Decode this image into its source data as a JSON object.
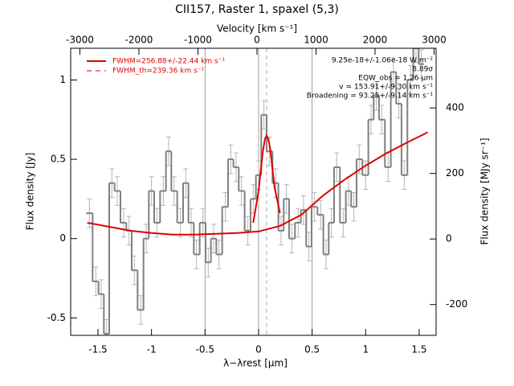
{
  "chart_data": {
    "type": "line",
    "title": "CII157, Raster 1, spaxel (5,3)",
    "xlabel": "λ−λrest [μm]",
    "ylabel": "Flux density [Jy]",
    "x2label": "Velocity [km s⁻¹]",
    "y2label": "Flux density [MJy sr⁻¹]",
    "xlim": [
      -1.755,
      1.658
    ],
    "xticks": [
      -1.5,
      -1.0,
      -0.5,
      0.0,
      0.5,
      1.0,
      1.5
    ],
    "ylim": [
      -0.61,
      1.2
    ],
    "yticks": [
      -0.5,
      0.0,
      0.5,
      1.0
    ],
    "x2lim": [
      -3156,
      3034
    ],
    "x2ticks": [
      -3000,
      -2000,
      -1000,
      0,
      1000,
      2000,
      3000
    ],
    "y2lim": [
      -294,
      582
    ],
    "y2ticks": [
      -200,
      0,
      200,
      400
    ],
    "vlines": [
      -0.5,
      0,
      0.5
    ],
    "line_center": 0.075,
    "legend": "upper left",
    "legend_entries": [
      "FWHM=256.88+/-22.44 km s⁻¹",
      "FWHM_th=239.36 km s⁻¹"
    ],
    "annotations": [
      "9.25e-18+/-1.06e-18 W m⁻²",
      "8.89σ",
      "EQW_obs = 1.26 μm",
      "v = 153.91+/-9.30 km s⁻¹",
      "Broadening = 93.25+/-9.14 km s⁻¹"
    ],
    "series": [
      {
        "name": "spectrum",
        "color": "#808080",
        "error_color": "#b4b4b4",
        "error": 0.09,
        "x": [
          -1.58,
          -1.52,
          -1.47,
          -1.42,
          -1.37,
          -1.32,
          -1.26,
          -1.21,
          -1.16,
          -1.1,
          -1.05,
          -1.0,
          -0.95,
          -0.89,
          -0.84,
          -0.79,
          -0.73,
          -0.68,
          -0.63,
          -0.58,
          -0.52,
          -0.47,
          -0.42,
          -0.37,
          -0.31,
          -0.26,
          -0.21,
          -0.16,
          -0.1,
          -0.05,
          0.0,
          0.05,
          0.1,
          0.16,
          0.21,
          0.26,
          0.31,
          0.37,
          0.42,
          0.47,
          0.52,
          0.58,
          0.63,
          0.68,
          0.73,
          0.79,
          0.84,
          0.89,
          0.94,
          1.0,
          1.05,
          1.1,
          1.15,
          1.21,
          1.26,
          1.31,
          1.36,
          1.42,
          1.47,
          1.52
        ],
        "values": [
          0.16,
          -0.27,
          -0.35,
          -0.6,
          0.35,
          0.3,
          0.1,
          0.05,
          -0.2,
          -0.45,
          0.0,
          0.3,
          0.1,
          0.3,
          0.55,
          0.3,
          0.1,
          0.35,
          0.1,
          -0.1,
          0.1,
          -0.15,
          0.0,
          -0.1,
          0.2,
          0.5,
          0.45,
          0.3,
          0.05,
          0.25,
          0.4,
          0.78,
          0.55,
          0.35,
          0.05,
          0.25,
          0.0,
          0.1,
          0.18,
          -0.05,
          0.2,
          0.15,
          -0.1,
          0.1,
          0.45,
          0.1,
          0.3,
          0.2,
          0.5,
          0.4,
          0.75,
          0.9,
          0.75,
          0.45,
          1.05,
          0.85,
          0.4,
          1.0,
          1.2,
          1.1
        ]
      },
      {
        "name": "continuum",
        "color": "#e00000",
        "x": [
          -1.6,
          -1.4,
          -1.2,
          -1.0,
          -0.8,
          -0.6,
          -0.4,
          -0.2,
          0.0,
          0.2,
          0.4,
          0.6,
          0.8,
          1.0,
          1.2,
          1.4,
          1.58
        ],
        "values": [
          0.1,
          0.075,
          0.05,
          0.035,
          0.025,
          0.025,
          0.03,
          0.035,
          0.045,
          0.08,
          0.15,
          0.27,
          0.37,
          0.46,
          0.54,
          0.61,
          0.67
        ]
      },
      {
        "name": "fit",
        "color": "#e00000",
        "x": [
          -0.05,
          0.0,
          0.02,
          0.04,
          0.06,
          0.075,
          0.09,
          0.11,
          0.13,
          0.15,
          0.2
        ],
        "values": [
          0.1,
          0.3,
          0.43,
          0.55,
          0.63,
          0.65,
          0.63,
          0.56,
          0.44,
          0.32,
          0.16
        ]
      }
    ]
  }
}
